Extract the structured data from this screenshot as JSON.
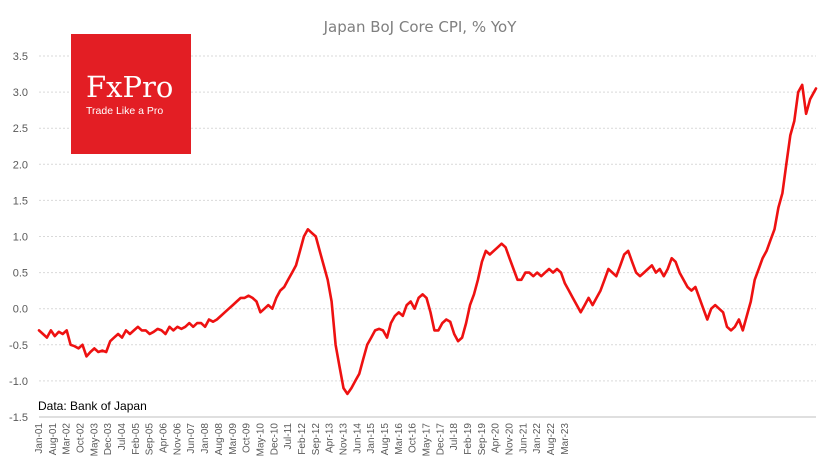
{
  "brand": {
    "name": "FxPro",
    "tagline": "Trade Like a Pro",
    "color": "#e31e24"
  },
  "source_note": "Data: Bank of Japan",
  "line_color": "#ee1111",
  "chart_data": {
    "type": "line",
    "title": "Japan BoJ Core CPI, % YoY",
    "xlabel": "",
    "ylabel": "",
    "ylim": [
      -1.5,
      3.5
    ],
    "yticks": [
      "-1.5",
      "-1.0",
      "-0.5",
      "0.0",
      "0.5",
      "1.0",
      "1.5",
      "2.0",
      "2.5",
      "3.0",
      "3.5"
    ],
    "x_start": "Jan-01",
    "x_end": "Jun-23",
    "grid": true,
    "legend": "none",
    "categories": [
      "Jan-01",
      "Aug-01",
      "Mar-02",
      "Oct-02",
      "May-03",
      "Dec-03",
      "Jul-04",
      "Feb-05",
      "Sep-05",
      "Apr-06",
      "Nov-06",
      "Jun-07",
      "Jan-08",
      "Aug-08",
      "Mar-09",
      "Oct-09",
      "May-10",
      "Dec-10",
      "Jul-11",
      "Feb-12",
      "Sep-12",
      "Apr-13",
      "Nov-13",
      "Jun-14",
      "Jan-15",
      "Aug-15",
      "Mar-16",
      "Oct-16",
      "May-17",
      "Dec-17",
      "Jul-18",
      "Feb-19",
      "Sep-19",
      "Apr-20",
      "Nov-20",
      "Jun-21",
      "Jan-22",
      "Aug-22",
      "Mar-23"
    ],
    "series": [
      {
        "name": "Core CPI YoY",
        "points": [
          [
            0,
            -0.3
          ],
          [
            2,
            -0.35
          ],
          [
            4,
            -0.4
          ],
          [
            6,
            -0.3
          ],
          [
            8,
            -0.38
          ],
          [
            10,
            -0.32
          ],
          [
            12,
            -0.35
          ],
          [
            14,
            -0.3
          ],
          [
            16,
            -0.5
          ],
          [
            18,
            -0.52
          ],
          [
            20,
            -0.55
          ],
          [
            22,
            -0.5
          ],
          [
            24,
            -0.66
          ],
          [
            26,
            -0.6
          ],
          [
            28,
            -0.55
          ],
          [
            30,
            -0.6
          ],
          [
            32,
            -0.58
          ],
          [
            34,
            -0.6
          ],
          [
            36,
            -0.45
          ],
          [
            38,
            -0.4
          ],
          [
            40,
            -0.35
          ],
          [
            42,
            -0.4
          ],
          [
            44,
            -0.3
          ],
          [
            46,
            -0.35
          ],
          [
            48,
            -0.3
          ],
          [
            50,
            -0.25
          ],
          [
            52,
            -0.3
          ],
          [
            54,
            -0.3
          ],
          [
            56,
            -0.35
          ],
          [
            58,
            -0.32
          ],
          [
            60,
            -0.28
          ],
          [
            62,
            -0.3
          ],
          [
            64,
            -0.35
          ],
          [
            66,
            -0.25
          ],
          [
            68,
            -0.3
          ],
          [
            70,
            -0.25
          ],
          [
            72,
            -0.28
          ],
          [
            74,
            -0.25
          ],
          [
            76,
            -0.2
          ],
          [
            78,
            -0.25
          ],
          [
            80,
            -0.2
          ],
          [
            82,
            -0.2
          ],
          [
            84,
            -0.25
          ],
          [
            86,
            -0.15
          ],
          [
            88,
            -0.18
          ],
          [
            90,
            -0.15
          ],
          [
            92,
            -0.1
          ],
          [
            94,
            -0.05
          ],
          [
            96,
            0.0
          ],
          [
            98,
            0.05
          ],
          [
            100,
            0.1
          ],
          [
            102,
            0.15
          ],
          [
            104,
            0.15
          ],
          [
            106,
            0.18
          ],
          [
            108,
            0.15
          ],
          [
            110,
            0.1
          ],
          [
            112,
            -0.05
          ],
          [
            114,
            0.0
          ],
          [
            116,
            0.05
          ],
          [
            118,
            0.0
          ],
          [
            120,
            0.15
          ],
          [
            122,
            0.25
          ],
          [
            124,
            0.3
          ],
          [
            126,
            0.4
          ],
          [
            128,
            0.5
          ],
          [
            130,
            0.6
          ],
          [
            132,
            0.8
          ],
          [
            134,
            1.0
          ],
          [
            136,
            1.1
          ],
          [
            138,
            1.05
          ],
          [
            140,
            1.0
          ],
          [
            142,
            0.8
          ],
          [
            144,
            0.6
          ],
          [
            146,
            0.4
          ],
          [
            148,
            0.1
          ],
          [
            150,
            -0.5
          ],
          [
            152,
            -0.8
          ],
          [
            154,
            -1.1
          ],
          [
            156,
            -1.18
          ],
          [
            158,
            -1.1
          ],
          [
            160,
            -1.0
          ],
          [
            162,
            -0.9
          ],
          [
            164,
            -0.7
          ],
          [
            166,
            -0.5
          ],
          [
            168,
            -0.4
          ],
          [
            170,
            -0.3
          ],
          [
            172,
            -0.28
          ],
          [
            174,
            -0.3
          ],
          [
            176,
            -0.4
          ],
          [
            178,
            -0.2
          ],
          [
            180,
            -0.1
          ],
          [
            182,
            -0.05
          ],
          [
            184,
            -0.1
          ],
          [
            186,
            0.05
          ],
          [
            188,
            0.1
          ],
          [
            190,
            0.0
          ],
          [
            192,
            0.15
          ],
          [
            194,
            0.2
          ],
          [
            196,
            0.15
          ],
          [
            198,
            -0.05
          ],
          [
            200,
            -0.3
          ],
          [
            202,
            -0.3
          ],
          [
            204,
            -0.2
          ],
          [
            206,
            -0.15
          ],
          [
            208,
            -0.18
          ],
          [
            210,
            -0.35
          ],
          [
            212,
            -0.45
          ],
          [
            214,
            -0.4
          ],
          [
            216,
            -0.2
          ],
          [
            218,
            0.05
          ],
          [
            220,
            0.2
          ],
          [
            222,
            0.4
          ],
          [
            224,
            0.65
          ],
          [
            226,
            0.8
          ],
          [
            228,
            0.75
          ],
          [
            230,
            0.8
          ],
          [
            232,
            0.85
          ],
          [
            234,
            0.9
          ],
          [
            236,
            0.85
          ],
          [
            238,
            0.7
          ],
          [
            240,
            0.55
          ],
          [
            242,
            0.4
          ],
          [
            244,
            0.4
          ],
          [
            246,
            0.5
          ],
          [
            248,
            0.5
          ],
          [
            250,
            0.45
          ],
          [
            252,
            0.5
          ],
          [
            254,
            0.45
          ],
          [
            256,
            0.5
          ],
          [
            258,
            0.55
          ],
          [
            260,
            0.5
          ],
          [
            262,
            0.55
          ],
          [
            264,
            0.5
          ],
          [
            266,
            0.35
          ],
          [
            268,
            0.25
          ],
          [
            270,
            0.15
          ],
          [
            272,
            0.05
          ],
          [
            274,
            -0.05
          ],
          [
            276,
            0.05
          ],
          [
            278,
            0.15
          ],
          [
            280,
            0.05
          ],
          [
            282,
            0.15
          ],
          [
            284,
            0.25
          ],
          [
            286,
            0.4
          ],
          [
            288,
            0.55
          ],
          [
            290,
            0.5
          ],
          [
            292,
            0.45
          ],
          [
            294,
            0.6
          ],
          [
            296,
            0.75
          ],
          [
            298,
            0.8
          ],
          [
            300,
            0.65
          ],
          [
            302,
            0.5
          ],
          [
            304,
            0.45
          ],
          [
            306,
            0.5
          ],
          [
            308,
            0.55
          ],
          [
            310,
            0.6
          ],
          [
            312,
            0.5
          ],
          [
            314,
            0.55
          ],
          [
            316,
            0.45
          ],
          [
            318,
            0.55
          ],
          [
            320,
            0.7
          ],
          [
            322,
            0.65
          ],
          [
            324,
            0.5
          ],
          [
            326,
            0.4
          ],
          [
            328,
            0.3
          ],
          [
            330,
            0.25
          ],
          [
            332,
            0.3
          ],
          [
            334,
            0.15
          ],
          [
            336,
            0.0
          ],
          [
            338,
            -0.15
          ],
          [
            340,
            0.0
          ],
          [
            342,
            0.05
          ],
          [
            344,
            0.0
          ],
          [
            346,
            -0.05
          ],
          [
            348,
            -0.25
          ],
          [
            350,
            -0.3
          ],
          [
            352,
            -0.25
          ],
          [
            354,
            -0.15
          ],
          [
            356,
            -0.3
          ],
          [
            358,
            -0.1
          ],
          [
            360,
            0.1
          ],
          [
            362,
            0.4
          ],
          [
            364,
            0.55
          ],
          [
            366,
            0.7
          ],
          [
            368,
            0.8
          ],
          [
            370,
            0.95
          ],
          [
            372,
            1.1
          ],
          [
            374,
            1.4
          ],
          [
            376,
            1.6
          ],
          [
            378,
            2.0
          ],
          [
            380,
            2.4
          ],
          [
            382,
            2.6
          ],
          [
            384,
            3.0
          ],
          [
            386,
            3.1
          ],
          [
            388,
            2.7
          ],
          [
            390,
            2.9
          ],
          [
            392,
            3.0
          ],
          [
            393,
            3.05
          ]
        ]
      }
    ]
  }
}
